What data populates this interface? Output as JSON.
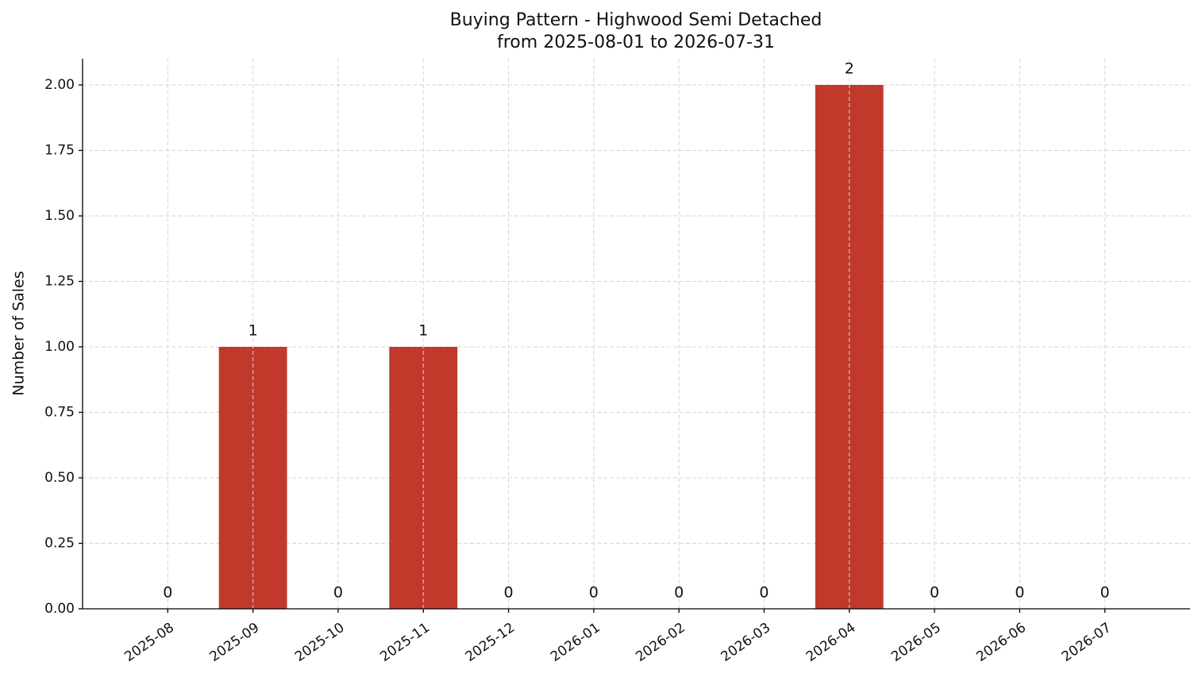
{
  "chart_data": {
    "type": "bar",
    "title": "Buying Pattern - Highwood Semi Detached",
    "subtitle": "from 2025-08-01 to 2026-07-31",
    "y_label": "Number of Sales",
    "categories": [
      "2025-08",
      "2025-09",
      "2025-10",
      "2025-11",
      "2025-12",
      "2026-01",
      "2026-02",
      "2026-03",
      "2026-04",
      "2026-05",
      "2026-06",
      "2026-07"
    ],
    "values": [
      0,
      1,
      0,
      1,
      0,
      0,
      0,
      0,
      2,
      0,
      0,
      0
    ],
    "color": "#c0392b",
    "ylim": [
      0,
      2.1
    ],
    "yticks": [
      {
        "value": 0,
        "label": "0.00"
      },
      {
        "value": 0.25,
        "label": "0.25"
      },
      {
        "value": 0.5,
        "label": "0.50"
      },
      {
        "value": 0.75,
        "label": "0.75"
      },
      {
        "value": 1,
        "label": "1.00"
      },
      {
        "value": 1.25,
        "label": "1.25"
      },
      {
        "value": 1.5,
        "label": "1.50"
      },
      {
        "value": 1.75,
        "label": "1.75"
      },
      {
        "value": 2,
        "label": "2.00"
      }
    ],
    "grid": true
  }
}
